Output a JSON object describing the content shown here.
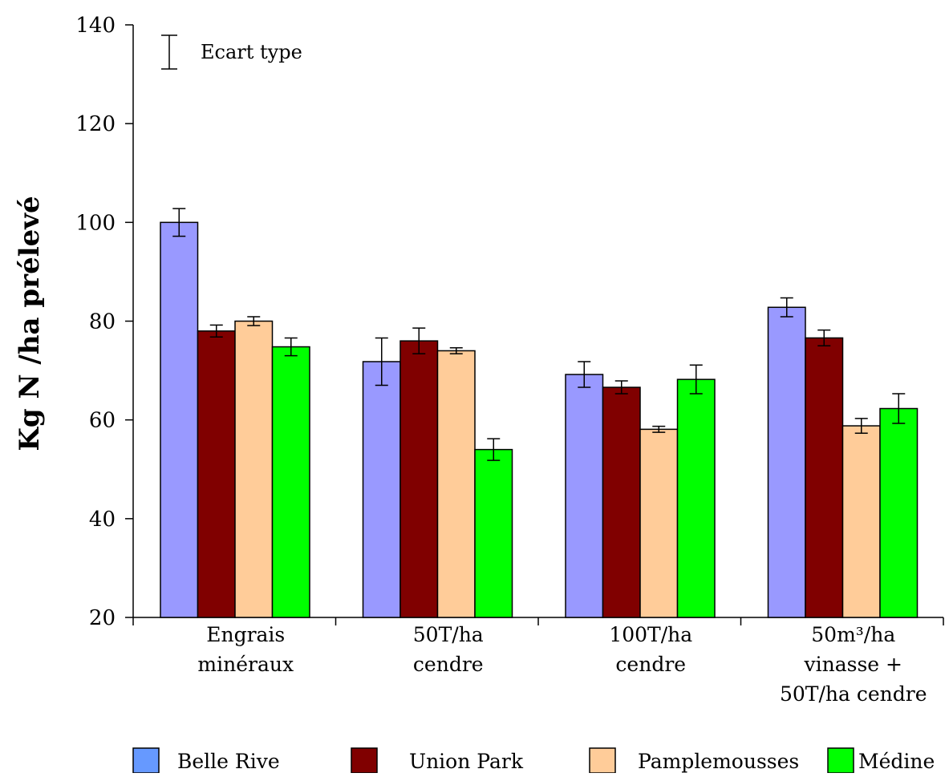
{
  "chart_data": {
    "type": "bar",
    "ylabel": "Kg N /ha prélevé",
    "xlabel": "",
    "ylim": [
      20,
      140
    ],
    "yticks": [
      20,
      40,
      60,
      80,
      100,
      120,
      140
    ],
    "grid": false,
    "legend_position": "bottom",
    "error_note": "Ecart type",
    "categories": [
      [
        "Engrais",
        "minéraux"
      ],
      [
        "50T/ha",
        "cendre"
      ],
      [
        "100T/ha",
        "cendre"
      ],
      [
        "50m³/ha",
        "vinasse +",
        "50T/ha cendre"
      ]
    ],
    "series": [
      {
        "name": "Belle Rive",
        "color": "#9999ff",
        "legend_color": "#6699ff",
        "values": [
          100,
          71.8,
          69.2,
          82.8
        ],
        "errors": [
          2.8,
          4.8,
          2.6,
          1.9
        ]
      },
      {
        "name": "Union Park",
        "color": "#800000",
        "legend_color": "#800000",
        "values": [
          78,
          76,
          66.6,
          76.6
        ],
        "errors": [
          1.2,
          2.6,
          1.3,
          1.6
        ]
      },
      {
        "name": "Pamplemousses",
        "color": "#ffcc99",
        "legend_color": "#ffcc99",
        "values": [
          80,
          74,
          58.1,
          58.8
        ],
        "errors": [
          0.9,
          0.6,
          0.6,
          1.5
        ]
      },
      {
        "name": "Médine",
        "color": "#00ff00",
        "legend_color": "#00ff00",
        "values": [
          74.8,
          54,
          68.2,
          62.3
        ],
        "errors": [
          1.8,
          2.2,
          2.9,
          3.0
        ]
      }
    ]
  }
}
